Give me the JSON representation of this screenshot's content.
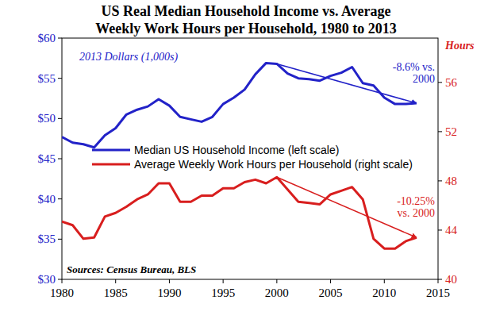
{
  "chart_data": {
    "type": "line",
    "title": [
      "US Real Median Household Income vs. Average",
      "Weekly Work Hours per Household, 1980 to 2013"
    ],
    "subtitle": "2013 Dollars (1,000s)",
    "y2label": "Hours",
    "source": "Sources: Census Bureau, BLS",
    "x": [
      1980,
      1981,
      1982,
      1983,
      1984,
      1985,
      1986,
      1987,
      1988,
      1989,
      1990,
      1991,
      1992,
      1993,
      1994,
      1995,
      1996,
      1997,
      1998,
      1999,
      2000,
      2001,
      2002,
      2003,
      2004,
      2005,
      2006,
      2007,
      2008,
      2009,
      2010,
      2011,
      2012,
      2013
    ],
    "series": [
      {
        "name": "Median US Household Income (left scale)",
        "color": "#2222c8",
        "values": [
          47.7,
          47.0,
          46.8,
          46.4,
          47.9,
          48.8,
          50.5,
          51.1,
          51.5,
          52.4,
          51.6,
          50.2,
          49.9,
          49.6,
          50.2,
          51.8,
          52.6,
          53.6,
          55.5,
          56.9,
          56.8,
          55.6,
          55.0,
          54.9,
          54.7,
          55.3,
          55.7,
          56.4,
          54.4,
          54.1,
          52.6,
          51.8,
          51.8,
          51.9
        ]
      },
      {
        "name": "Average Weekly Work Hours per Household (right scale)",
        "color": "#d81e1e",
        "axis": "y2",
        "values": [
          44.7,
          44.4,
          43.3,
          43.4,
          45.1,
          45.4,
          45.9,
          46.5,
          46.9,
          47.8,
          47.8,
          46.3,
          46.3,
          46.8,
          46.8,
          47.4,
          47.4,
          47.9,
          48.1,
          47.8,
          48.3,
          47.3,
          46.3,
          46.2,
          46.1,
          46.9,
          47.2,
          47.5,
          46.5,
          43.3,
          42.5,
          42.5,
          43.1,
          43.4
        ]
      }
    ],
    "xlim": [
      1980,
      2015
    ],
    "xticks": [
      1980,
      1985,
      1990,
      1995,
      2000,
      2005,
      2010,
      2015
    ],
    "ylim": [
      30,
      60
    ],
    "yticks": [
      {
        "value": 30,
        "label": "$30"
      },
      {
        "value": 35,
        "label": "$35"
      },
      {
        "value": 40,
        "label": "$40"
      },
      {
        "value": 45,
        "label": "$45"
      },
      {
        "value": 50,
        "label": "$50"
      },
      {
        "value": 55,
        "label": "$55"
      },
      {
        "value": 60,
        "label": "$60"
      }
    ],
    "y2lim": [
      40,
      59.6
    ],
    "y2ticks": [
      40,
      44,
      48,
      52,
      56
    ],
    "annotations": [
      {
        "text": [
          "-8.6% vs.",
          "2000"
        ],
        "color": "#2222c8",
        "x": [
          2000,
          2013
        ],
        "y": [
          56.8,
          51.9
        ]
      },
      {
        "text": [
          "-10.25%",
          "vs. 2000"
        ],
        "color": "#d81e1e",
        "axis": "y2",
        "x": [
          2000,
          2013
        ],
        "y": [
          48.3,
          43.4
        ]
      }
    ],
    "grid": false,
    "legend": "left"
  }
}
